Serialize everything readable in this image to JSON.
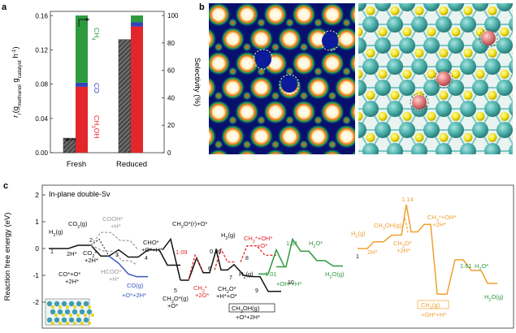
{
  "panel_a": {
    "label": "a",
    "ylabel_left": "r",
    "ylabel_left_sub": "r",
    "ylabel_left_tail": "(g",
    "ylabel_left_sub2": "methanol",
    "ylabel_left_mid": " g",
    "ylabel_left_sub3": "catalyst",
    "ylabel_left_end": " h",
    "ylabel_left_sup": "-1",
    "ylabel_left_close": ")",
    "ylabel_right": "Selectivity (%)",
    "left_ticks": [
      "0.00",
      "0.04",
      "0.08",
      "0.12",
      "0.16"
    ],
    "right_ticks": [
      "0",
      "20",
      "40",
      "60",
      "80",
      "100"
    ],
    "categories": [
      "Fresh",
      "Reduced"
    ],
    "series_labels": {
      "ch4": "CH",
      "ch4_sub": "4",
      "co": "CO",
      "ch3oh": "CH",
      "ch3oh_sub": "3",
      "ch3oh_tail": "OH"
    },
    "colors": {
      "ch4": "#2e9a3e",
      "co": "#3344bb",
      "ch3oh": "#e3262b",
      "rate": "#555555"
    }
  },
  "chart_data": {
    "type": "bar",
    "categories": [
      "Fresh",
      "Reduced"
    ],
    "rate": [
      0.017,
      0.132
    ],
    "selectivity": [
      {
        "name": "CH3OH",
        "values": [
          48,
          92
        ]
      },
      {
        "name": "CO",
        "values": [
          3,
          3
        ]
      },
      {
        "name": "CH4",
        "values": [
          49,
          5
        ]
      }
    ],
    "ylim_left": [
      0,
      0.165
    ],
    "ylim_right": [
      0,
      103
    ]
  },
  "panel_b": {
    "label": "b"
  },
  "panel_c": {
    "label": "c",
    "title": "In-plane double-Sv",
    "ylabel": "Reaction free energy (eV)",
    "ticks": [
      "2",
      "1",
      "0",
      "-1",
      "-2"
    ],
    "energies": [
      "1.09",
      "0.86",
      "1.61",
      "1.01",
      "1.14",
      "1.61"
    ],
    "steps": [
      "1",
      "2",
      "3",
      "4",
      "5",
      "6",
      "7",
      "8",
      "9",
      "10",
      "1"
    ],
    "labels": {
      "h2g": "H",
      "co2g": "CO",
      "twoh": "2H*",
      "co2": "CO",
      "ptwoh": "+2H*",
      "cooh": "COOH*",
      "cooh_h": "+H*",
      "hcoo": "HCOO*",
      "hcoo_h": "+H*",
      "co_o": "CO*+O*",
      "co_o_2h": "+2H*",
      "cog": "CO(g)",
      "cog_o": "+O*+2H*",
      "cho": "CHO*",
      "cho_o": "+O*+H*",
      "ch2o_r": "CH",
      "ch2o_g": "CH",
      "ch2o_g_o": "+O*",
      "ch2_2o": "CH",
      "ch2_2o_b": "+2O*",
      "ch2o_b": "CH",
      "ch2o_b2": "+H*+O*",
      "h2g2": "H",
      "ch2_oh": "CH",
      "ch2_oh_o": "+O*",
      "h2g3": "H",
      "ch3oh_g": "CH",
      "ch3oh_g_o": "+O*+2H*",
      "h2o": "H",
      "h2og": "H",
      "oh_h": "+OH*+H*",
      "ch3oh_g2": "CH",
      "h2g4": "H",
      "twoh2": "2H*",
      "ch3o": "CH",
      "ch3o_2h": "+2H*",
      "ch3_oh": "CH",
      "ch3_oh_2h": "+2H*",
      "ch4g": "CH",
      "ch4g_oh": "+OH*+H*",
      "h2o2": "H",
      "h2og2": "H"
    },
    "colors": {
      "black": "#111111",
      "gray": "#999999",
      "blue": "#3a57c4",
      "red": "#e3262b",
      "green": "#2e9a3e",
      "orange": "#f0a030"
    }
  }
}
